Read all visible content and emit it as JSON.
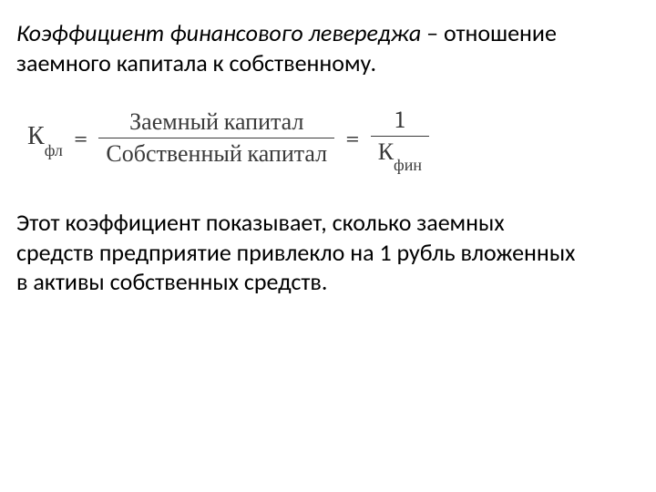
{
  "intro": {
    "term": "Коэффициент финансового левереджа",
    "dash": " – ",
    "def1": "отношение",
    "def2": "заемного капитала к собственному."
  },
  "formula": {
    "lhs_main": "К",
    "lhs_sub": "фл",
    "eq": "=",
    "frac1_num": "Заемный капитал",
    "frac1_den": "Собственный капитал",
    "frac2_num": "1",
    "frac2_den_main": "К",
    "frac2_den_sub": "фин"
  },
  "desc": {
    "l1": "Этот коэффициент показывает, сколько заемных",
    "l2": "средств предприятие привлекло на 1 рубль вложенных",
    "l3": "в активы собственных средств."
  },
  "style": {
    "text_color": "#000000",
    "formula_color": "#3a3a3a",
    "bg": "#ffffff"
  }
}
